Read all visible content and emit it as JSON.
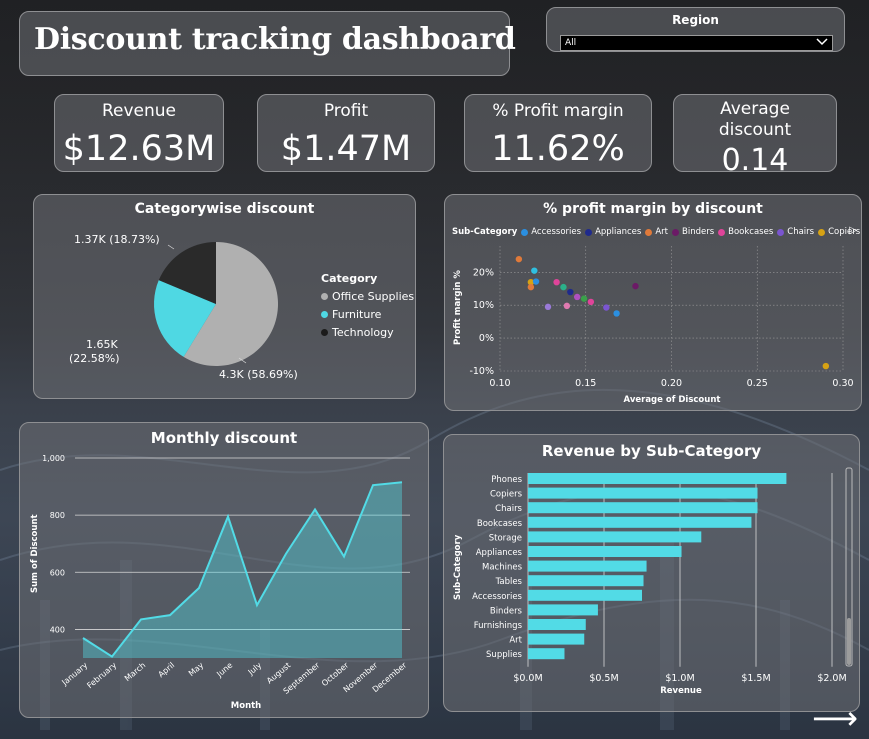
{
  "dashboard": {
    "title": "Discount tracking dashboard",
    "region": {
      "label": "Region",
      "selected": "All"
    }
  },
  "kpis": [
    {
      "label": "Revenue",
      "value": "$12.63M"
    },
    {
      "label": "Profit",
      "value": "$1.47M"
    },
    {
      "label": "% Profit margin",
      "value": "11.62%"
    },
    {
      "label": "Average discount",
      "value": "0.14"
    }
  ],
  "colors": {
    "office_supplies": "#b0b0b0",
    "furniture": "#4fd8e3",
    "technology": "#2a2a2a",
    "accent": "#52dbe6"
  },
  "chart_data": [
    {
      "type": "pie",
      "title": "Categorywise discount",
      "legend_title": "Category",
      "legend_position": "right",
      "slices": [
        {
          "name": "Office Supplies",
          "value": 4300,
          "label": "4.3K (58.69%)",
          "color": "#b0b0b0"
        },
        {
          "name": "Furniture",
          "value": 1650,
          "label_line1": "1.65K",
          "label_line2": "(22.58%)",
          "color": "#4fd8e3"
        },
        {
          "name": "Technology",
          "value": 1370,
          "label": "1.37K (18.73%)",
          "color": "#2a2a2a"
        }
      ]
    },
    {
      "type": "scatter",
      "title": "% profit margin by discount",
      "legend_title": "Sub-Category",
      "xlabel": "Average of Discount",
      "ylabel": "Profit margin %",
      "xlim": [
        0.1,
        0.3
      ],
      "ylim": [
        -10,
        28
      ],
      "x_ticks": [
        "0.10",
        "0.15",
        "0.20",
        "0.25",
        "0.30"
      ],
      "y_ticks": [
        {
          "v": 20,
          "t": "20%"
        },
        {
          "v": 10,
          "t": "10%"
        },
        {
          "v": 0,
          "t": "0%"
        },
        {
          "v": -10,
          "t": "-10%"
        }
      ],
      "legend": [
        {
          "name": "Accessories",
          "color": "#2b8fe0"
        },
        {
          "name": "Appliances",
          "color": "#1f2a8c"
        },
        {
          "name": "Art",
          "color": "#e07a3a"
        },
        {
          "name": "Binders",
          "color": "#6b1a66"
        },
        {
          "name": "Bookcases",
          "color": "#e0449a"
        },
        {
          "name": "Chairs",
          "color": "#7a55d0"
        },
        {
          "name": "Copiers",
          "color": "#d6a214"
        }
      ],
      "points": [
        {
          "x": 0.111,
          "y": 24.0,
          "color": "#e07a3a"
        },
        {
          "x": 0.12,
          "y": 20.5,
          "color": "#2fbfe0"
        },
        {
          "x": 0.118,
          "y": 17.0,
          "color": "#d6a214"
        },
        {
          "x": 0.121,
          "y": 17.2,
          "color": "#2b8fe0"
        },
        {
          "x": 0.118,
          "y": 15.5,
          "color": "#e07a3a"
        },
        {
          "x": 0.133,
          "y": 17.0,
          "color": "#e0449a"
        },
        {
          "x": 0.137,
          "y": 15.5,
          "color": "#2bb08a"
        },
        {
          "x": 0.141,
          "y": 14.0,
          "color": "#1f2a8c"
        },
        {
          "x": 0.145,
          "y": 12.5,
          "color": "#b050c0"
        },
        {
          "x": 0.149,
          "y": 12.0,
          "color": "#3aa04a"
        },
        {
          "x": 0.153,
          "y": 11.0,
          "color": "#e0449a"
        },
        {
          "x": 0.128,
          "y": 9.5,
          "color": "#9a7ad8"
        },
        {
          "x": 0.139,
          "y": 9.8,
          "color": "#e07ab0"
        },
        {
          "x": 0.162,
          "y": 9.3,
          "color": "#7a55d0"
        },
        {
          "x": 0.168,
          "y": 7.5,
          "color": "#2b8fe0"
        },
        {
          "x": 0.179,
          "y": 15.8,
          "color": "#6b1a66"
        },
        {
          "x": 0.29,
          "y": -8.5,
          "color": "#d6a214"
        }
      ]
    },
    {
      "type": "area",
      "title": "Monthly discount",
      "xlabel": "Month",
      "ylabel": "Sum of Discount",
      "ylim": [
        300,
        1000
      ],
      "y_ticks": [
        {
          "v": 1000,
          "t": "1,000"
        },
        {
          "v": 800,
          "t": "800"
        },
        {
          "v": 600,
          "t": "600"
        },
        {
          "v": 400,
          "t": "400"
        }
      ],
      "categories": [
        "January",
        "February",
        "March",
        "April",
        "May",
        "June",
        "July",
        "August",
        "September",
        "October",
        "November",
        "December"
      ],
      "values": [
        370,
        305,
        435,
        450,
        545,
        795,
        485,
        665,
        820,
        655,
        905,
        915
      ],
      "color": "#52dbe6"
    },
    {
      "type": "bar",
      "orientation": "horizontal",
      "title": "Revenue by Sub-Category",
      "xlabel": "Revenue",
      "ylabel": "Sub-Category",
      "xlim": [
        0,
        2000000
      ],
      "x_ticks": [
        {
          "v": 0,
          "t": "$0.0M"
        },
        {
          "v": 500000,
          "t": "$0.5M"
        },
        {
          "v": 1000000,
          "t": "$1.0M"
        },
        {
          "v": 1500000,
          "t": "$1.5M"
        },
        {
          "v": 2000000,
          "t": "$2.0M"
        }
      ],
      "categories": [
        "Phones",
        "Copiers",
        "Chairs",
        "Bookcases",
        "Storage",
        "Appliances",
        "Machines",
        "Tables",
        "Accessories",
        "Binders",
        "Furnishings",
        "Art",
        "Supplies"
      ],
      "values": [
        1700000,
        1510000,
        1510000,
        1470000,
        1140000,
        1010000,
        780000,
        760000,
        750000,
        460000,
        380000,
        370000,
        240000
      ],
      "color": "#52dbe6"
    }
  ]
}
